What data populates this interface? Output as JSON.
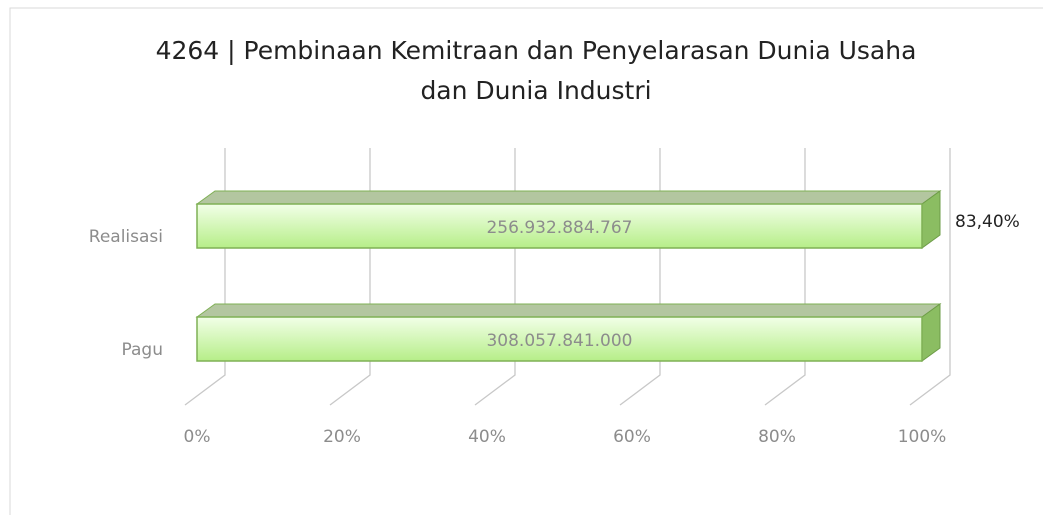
{
  "chart_data": {
    "type": "bar",
    "orientation": "horizontal",
    "stacking": "percent",
    "title": [
      "4264 | Pembinaan Kemitraan dan Penyelarasan Dunia Usaha",
      "dan Dunia Industri"
    ],
    "categories": [
      "Realisasi",
      "Pagu"
    ],
    "series": [
      {
        "color": "#c8f5a4",
        "values": [
          256932884767,
          308057841000
        ],
        "value_labels": [
          "256.932.884.767",
          "308.057.841.000"
        ]
      }
    ],
    "xlim": [
      0,
      100
    ],
    "xticks": [
      {
        "value": 0,
        "label": "0%"
      },
      {
        "value": 20,
        "label": "20%"
      },
      {
        "value": 40,
        "label": "40%"
      },
      {
        "value": 60,
        "label": "60%"
      },
      {
        "value": 80,
        "label": "80%"
      },
      {
        "value": 100,
        "label": "100%"
      }
    ],
    "grid": true,
    "annotations": [
      "83,40%"
    ]
  }
}
